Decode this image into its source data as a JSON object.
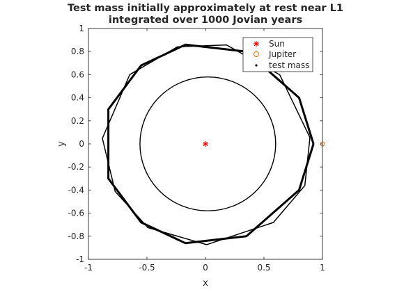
{
  "chart_data": {
    "type": "line",
    "title_lines": [
      "Test mass initially approximately at rest near L1",
      "integrated over 1000 Jovian years"
    ],
    "xlabel": "x",
    "ylabel": "y",
    "xlim": [
      -1,
      1
    ],
    "ylim": [
      -1,
      1
    ],
    "x_ticks": [
      -1,
      -0.5,
      0,
      0.5,
      1
    ],
    "y_ticks": [
      -1,
      -0.8,
      -0.6,
      -0.4,
      -0.2,
      0,
      0.2,
      0.4,
      0.6,
      0.8,
      1
    ],
    "x_tick_labels": [
      "-1",
      "-0.5",
      "0",
      "0.5",
      "1"
    ],
    "y_tick_labels": [
      "-1",
      "-0.8",
      "-0.6",
      "-0.4",
      "-0.2",
      "0",
      "0.2",
      "0.4",
      "0.6",
      "0.8",
      "1"
    ],
    "grid": false,
    "legend_position": "top-right",
    "series": [
      {
        "name": "Sun",
        "marker": "asterisk",
        "color": "#ff0000",
        "points": [
          [
            0,
            0
          ]
        ]
      },
      {
        "name": "Jupiter",
        "marker": "circle",
        "color": "#ff6a00",
        "points": [
          [
            1,
            0
          ]
        ]
      },
      {
        "name": "test mass",
        "marker": "dot",
        "color": "#000000",
        "circle": {
          "center": [
            0.02,
            0
          ],
          "radius": 0.58
        },
        "polygon_vertices": [
          [
            0.923,
            0
          ],
          [
            0.8,
            -0.4
          ],
          [
            0.35,
            -0.8
          ],
          [
            -0.17,
            -0.86
          ],
          [
            -0.55,
            -0.68
          ],
          [
            -0.83,
            -0.3
          ],
          [
            -0.83,
            0.3
          ],
          [
            -0.55,
            0.68
          ],
          [
            -0.17,
            0.86
          ],
          [
            0.35,
            0.8
          ],
          [
            0.8,
            0.4
          ],
          [
            0.923,
            0
          ]
        ],
        "polygon_rotation_deg": 23
      }
    ]
  }
}
